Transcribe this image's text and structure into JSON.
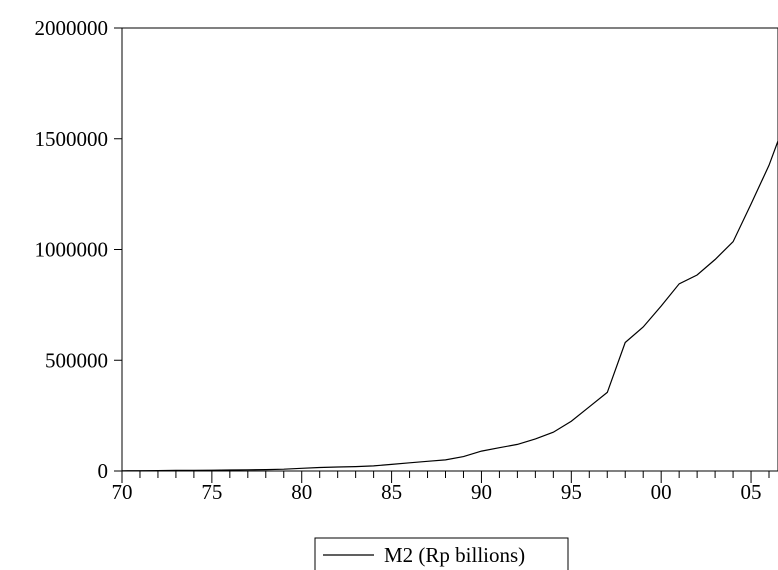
{
  "chart_data": {
    "type": "line",
    "x": [
      1970,
      1971,
      1972,
      1973,
      1974,
      1975,
      1976,
      1977,
      1978,
      1979,
      1980,
      1981,
      1982,
      1983,
      1984,
      1985,
      1986,
      1987,
      1988,
      1989,
      1990,
      1991,
      1992,
      1993,
      1994,
      1995,
      1996,
      1997,
      1998,
      1999,
      2000,
      2001,
      2002,
      2003,
      2004,
      2005,
      2006,
      2006.5
    ],
    "series": [
      {
        "name": "M2 (Rp billions)",
        "values": [
          1000,
          1500,
          2000,
          2500,
          3000,
          3500,
          4500,
          5500,
          6500,
          8000,
          12000,
          16000,
          18000,
          20000,
          23000,
          30000,
          37000,
          44000,
          50000,
          65000,
          90000,
          105000,
          120000,
          145000,
          175000,
          225000,
          290000,
          355000,
          580000,
          650000,
          745000,
          845000,
          885000,
          955000,
          1035000,
          1205000,
          1380000,
          1490000
        ]
      }
    ],
    "title": "",
    "xlabel": "",
    "ylabel": "",
    "xlim": [
      1970,
      2006.5
    ],
    "ylim": [
      0,
      2000000
    ],
    "x_ticks": [
      1970,
      1975,
      1980,
      1985,
      1990,
      1995,
      2000,
      2005
    ],
    "x_tick_labels": [
      "70",
      "75",
      "80",
      "85",
      "90",
      "95",
      "00",
      "05"
    ],
    "y_ticks": [
      0,
      500000,
      1000000,
      1500000,
      2000000
    ],
    "y_tick_labels": [
      "0",
      "500000",
      "1000000",
      "1500000",
      "2000000"
    ],
    "grid": false,
    "legend_position": "bottom-center",
    "line_color": "#000000"
  }
}
